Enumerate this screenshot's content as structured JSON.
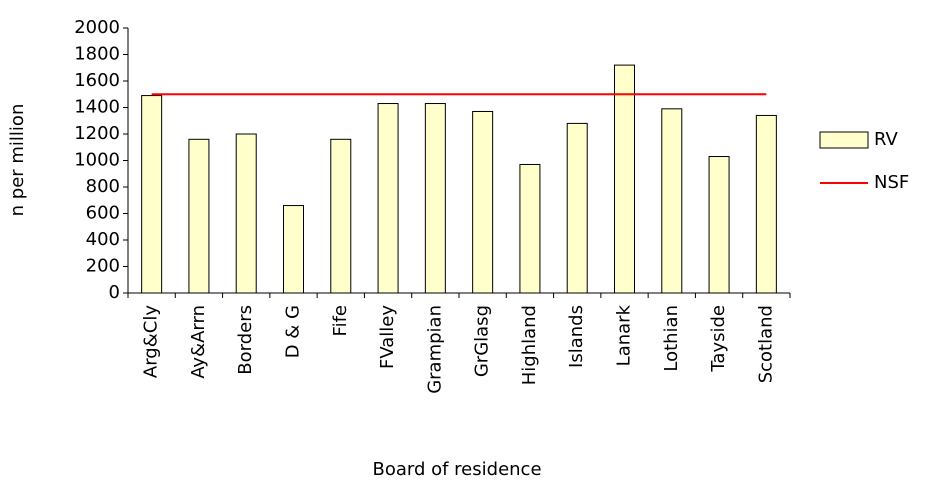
{
  "chart_data": {
    "type": "bar",
    "x_label": "Board of residence",
    "y_label": "n per million",
    "categories": [
      "Arg&Cly",
      "Ay&Arrn",
      "Borders",
      "D & G",
      "Fife",
      "FValley",
      "Grampian",
      "GrGlasg",
      "Highland",
      "Islands",
      "Lanark",
      "Lothian",
      "Tayside",
      "Scotland"
    ],
    "series": [
      {
        "name": "RV",
        "color": "#ffffcc",
        "type": "bar",
        "values": [
          1490,
          1160,
          1200,
          660,
          1160,
          1430,
          1430,
          1370,
          970,
          1280,
          1720,
          1390,
          1030,
          1340
        ]
      },
      {
        "name": "NSF",
        "color": "#ff0000",
        "type": "line",
        "values": [
          1500,
          1500,
          1500,
          1500,
          1500,
          1500,
          1500,
          1500,
          1500,
          1500,
          1500,
          1500,
          1500,
          1500
        ]
      }
    ],
    "ylim": [
      0,
      2000
    ],
    "yticks": [
      0,
      200,
      400,
      600,
      800,
      1000,
      1200,
      1400,
      1600,
      1800,
      2000
    ],
    "legend": "right"
  }
}
